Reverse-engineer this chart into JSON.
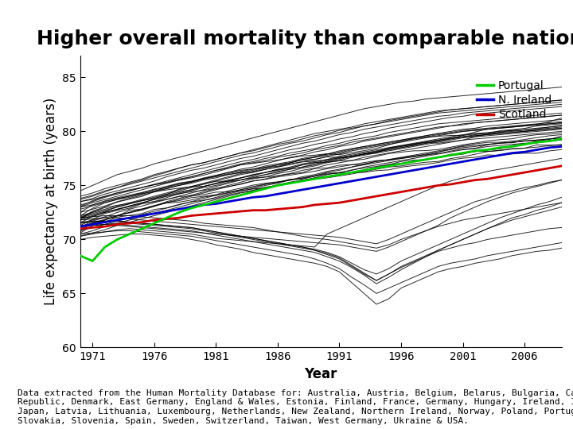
{
  "title": "Higher overall mortality than comparable nations",
  "xlabel": "Year",
  "ylabel": "Life expectancy at birth (years)",
  "ylim": [
    60,
    87
  ],
  "yticks": [
    60,
    65,
    70,
    75,
    80,
    85
  ],
  "year_start": 1970,
  "year_end": 2009,
  "xticks": [
    1971,
    1976,
    1981,
    1986,
    1991,
    1996,
    2001,
    2006
  ],
  "footnote": "Data extracted from the Human Mortality Database for: Australia, Austria, Belgium, Belarus, Bulgaria, Canada, Chile, Czech\nRepublic, Denmark, East Germany, England & Wales, Estonia, Finland, France, Germany, Hungary, Ireland, Iceland, Israel, Italy,\nJapan, Latvia, Lithuania, Luxembourg, Netherlands, New Zealand, Northern Ireland, Norway, Poland, Portugal, Russia, Scotland,\nSlovakia, Slovenia, Spain, Sweden, Switzerland, Taiwan, West Germany, Ukraine & USA.",
  "scotland_color": "#cc0000",
  "nireland_color": "#0000cc",
  "portugal_color": "#00cc00",
  "other_color": "#000000",
  "legend_portugal": "Portugal",
  "legend_nireland": "N. Ireland",
  "legend_scotland": "Scotland",
  "title_fontsize": 18,
  "axis_label_fontsize": 12,
  "tick_fontsize": 10,
  "footnote_fontsize": 8,
  "legend_fontsize": 10
}
